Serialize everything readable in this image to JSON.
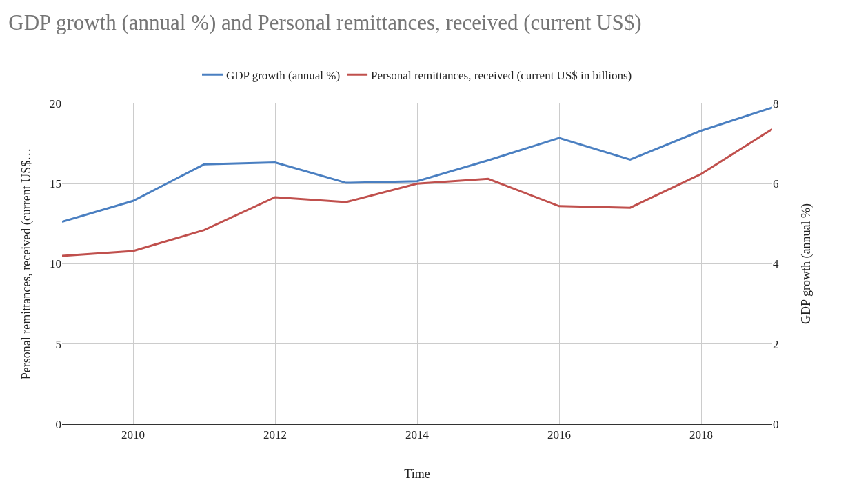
{
  "chart_data": {
    "type": "line",
    "title": "GDP growth (annual %) and Personal remittances, received (current US$)",
    "xlabel": "Time",
    "ylabel": "Personal remittances, received (current US$…",
    "y2label": "GDP growth (annual %)",
    "x": [
      2009,
      2010,
      2011,
      2012,
      2013,
      2014,
      2015,
      2016,
      2017,
      2018,
      2019
    ],
    "series": [
      {
        "name": "GDP growth (annual %)",
        "color": "#4a7fc1",
        "axis": "y2",
        "values": [
          5.05,
          5.57,
          6.48,
          6.53,
          6.02,
          6.06,
          6.58,
          7.14,
          6.6,
          7.32,
          7.9
        ]
      },
      {
        "name": "Personal remittances, received (current US$ in billions)",
        "color": "#c0504d",
        "values": [
          10.5,
          10.8,
          12.1,
          14.15,
          13.85,
          15.0,
          15.3,
          13.6,
          13.5,
          15.6,
          18.4
        ]
      }
    ],
    "xlim": [
      2009,
      2019
    ],
    "xticks": [
      2010,
      2012,
      2014,
      2016,
      2018
    ],
    "ylim": [
      0,
      20
    ],
    "yticks": [
      0,
      5,
      10,
      15,
      20
    ],
    "y2lim": [
      0,
      8
    ],
    "y2ticks": [
      0,
      2,
      4,
      6,
      8
    ],
    "grid": true,
    "legend": "top",
    "marker": "none",
    "line_style": "solid"
  }
}
